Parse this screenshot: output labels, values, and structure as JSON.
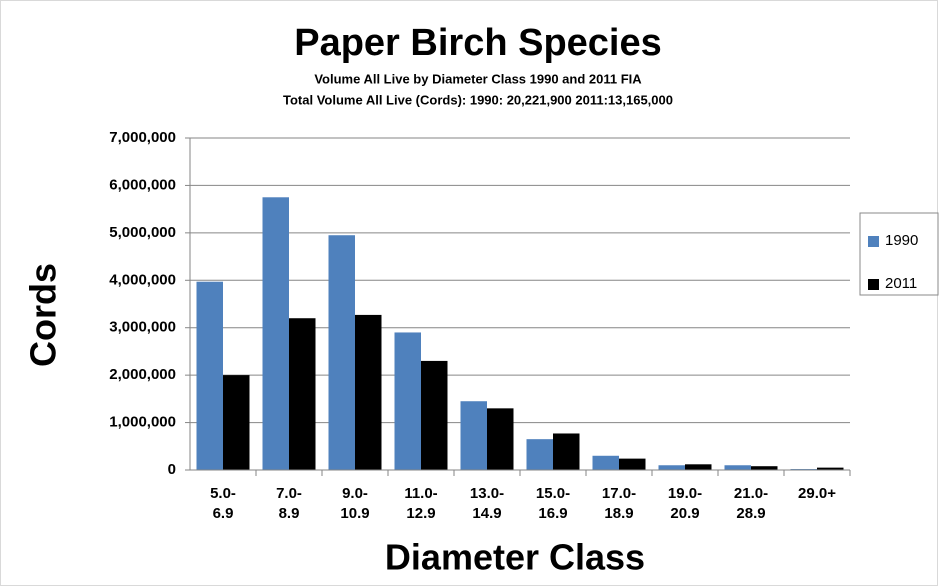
{
  "chart_data": {
    "type": "bar",
    "title": "Paper Birch Species",
    "subtitle": "Volume All Live by Diameter Class 1990 and 2011 FIA",
    "subtitle2": "Total Volume All Live (Cords): 1990: 20,221,900   2011:13,165,000",
    "x_label": "Diameter Class",
    "y_label": "Cords",
    "categories": [
      "5.0-\n6.9",
      "7.0-\n8.9",
      "9.0-\n10.9",
      "11.0-\n12.9",
      "13.0-\n14.9",
      "15.0-\n16.9",
      "17.0-\n18.9",
      "19.0-\n20.9",
      "21.0-\n28.9",
      "29.0+"
    ],
    "series": [
      {
        "name": "1990",
        "color": "#4f81bd",
        "values": [
          3970000,
          5750000,
          4950000,
          2900000,
          1450000,
          650000,
          300000,
          100000,
          100000,
          20000
        ]
      },
      {
        "name": "2011",
        "color": "#000000",
        "values": [
          2000000,
          3200000,
          3270000,
          2300000,
          1300000,
          770000,
          240000,
          120000,
          80000,
          50000
        ]
      }
    ],
    "ylim": [
      0,
      7000000
    ],
    "yticks": [
      0,
      {
        "value": 1000000,
        "label": "1,000,000"
      },
      {
        "value": 2000000,
        "label": "2,000,000"
      },
      {
        "value": 3000000,
        "label": "3,000,000"
      },
      {
        "value": 4000000,
        "label": "4,000,000"
      },
      {
        "value": 5000000,
        "label": "5,000,000"
      },
      {
        "value": 6000000,
        "label": "6,000,000"
      },
      {
        "value": 7000000,
        "label": "7,000,000"
      }
    ],
    "grid": true,
    "legend": "right"
  }
}
